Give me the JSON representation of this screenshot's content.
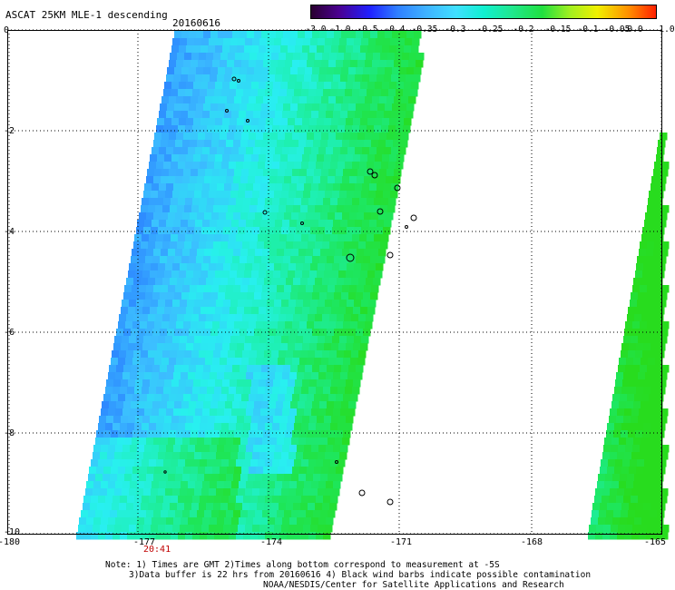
{
  "header": {
    "title": "ASCAT 25KM MLE-1 descending",
    "date": "20160616"
  },
  "colorbar": {
    "labels": [
      "-3.0",
      "-1.0",
      "-0.5",
      "-0.4",
      "-0.35",
      "-0.3",
      "-0.25",
      "-0.2",
      "-0.15",
      "-0.1",
      "-0.05",
      "0.0",
      "1.0"
    ],
    "colors": [
      "#2a0030",
      "#4a0090",
      "#2020ff",
      "#2f7fff",
      "#3fb0ff",
      "#40e0ff",
      "#10f0d0",
      "#20e890",
      "#20e040",
      "#a0f020",
      "#f0f000",
      "#ff9000",
      "#ff2000"
    ]
  },
  "axes": {
    "x_ticks": [
      "-180",
      "-177",
      "-174",
      "-171",
      "-168",
      "-165"
    ],
    "y_ticks": [
      "0",
      "-2",
      "-4",
      "-6",
      "-8",
      "-10"
    ]
  },
  "time_label": "20:41",
  "notes": {
    "line1": "Note: 1) Times are GMT 2)Times along bottom correspond to measurement at -5S",
    "line2": "3)Data buffer is 22 hrs from 20160616 4) Black wind barbs indicate possible contamination",
    "line3": "NOAA/NESDIS/Center for Satellite Applications and Research"
  }
}
